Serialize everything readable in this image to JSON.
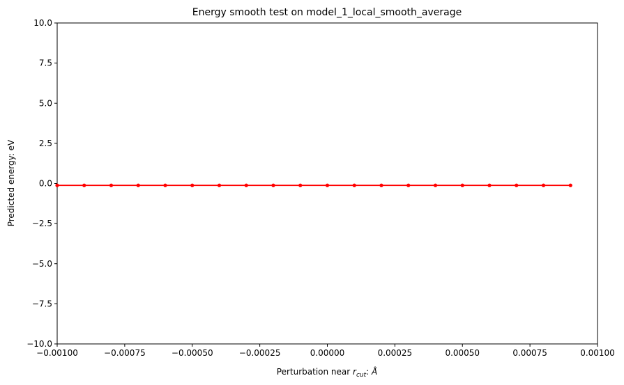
{
  "chart_data": {
    "type": "line",
    "title": "Energy smooth test on model_1_local_smooth_average",
    "xlabel_prefix": "Perturbation near ",
    "xlabel_r": "r",
    "xlabel_sub": "cut",
    "xlabel_suffix": ": ",
    "xlabel_unit": "Å",
    "ylabel": "Predicted energy: eV",
    "xlim": [
      -0.001,
      0.001
    ],
    "ylim": [
      -10,
      10
    ],
    "x_ticks": [
      -0.001,
      -0.00075,
      -0.0005,
      -0.00025,
      0,
      0.00025,
      0.0005,
      0.00075,
      0.001
    ],
    "x_tick_labels": [
      "−0.00100",
      "−0.00075",
      "−0.00050",
      "−0.00025",
      "0.00000",
      "0.00025",
      "0.00050",
      "0.00075",
      "0.00100"
    ],
    "y_ticks": [
      10,
      7.5,
      5,
      2.5,
      0,
      -2.5,
      -5,
      -7.5,
      -10
    ],
    "y_tick_labels": [
      "10.0",
      "7.5",
      "5.0",
      "2.5",
      "0.0",
      "−2.5",
      "−5.0",
      "−7.5",
      "−10.0"
    ],
    "grid": false,
    "series": [
      {
        "color": "#ff0000",
        "marker": "dot",
        "x": [
          -0.001,
          -0.0009,
          -0.0008,
          -0.0007,
          -0.0006,
          -0.0005,
          -0.0004,
          -0.0003,
          -0.0002,
          -0.0001,
          0,
          0.0001,
          0.0002,
          0.0003,
          0.0004,
          0.0005,
          0.0006,
          0.0007,
          0.0008,
          0.0009
        ],
        "y": [
          -0.12,
          -0.12,
          -0.12,
          -0.12,
          -0.12,
          -0.12,
          -0.12,
          -0.12,
          -0.12,
          -0.12,
          -0.12,
          -0.12,
          -0.12,
          -0.12,
          -0.12,
          -0.12,
          -0.12,
          -0.12,
          -0.12,
          -0.12
        ]
      }
    ]
  }
}
